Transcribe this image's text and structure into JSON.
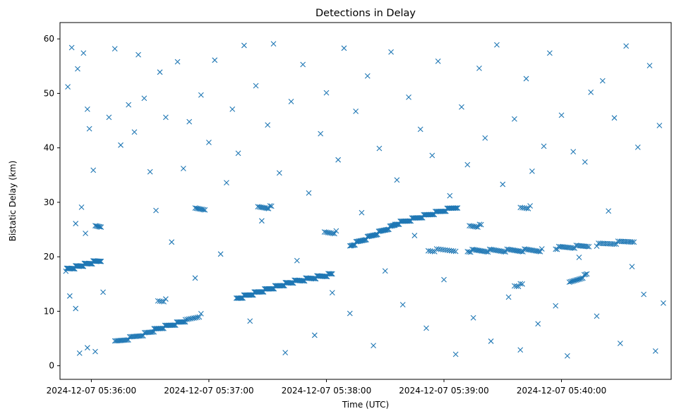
{
  "chart_data": {
    "type": "scatter",
    "title": "Detections in Delay",
    "xlabel": "Time (UTC)",
    "ylabel": "Bistatic Delay (km)",
    "x_axis_type": "datetime",
    "xlim": [
      "2024-12-07 05:35:44",
      "2024-12-07 05:40:56"
    ],
    "ylim": [
      -2.5,
      63
    ],
    "xticks": [
      "2024-12-07 05:36:00",
      "2024-12-07 05:37:00",
      "2024-12-07 05:38:00",
      "2024-12-07 05:39:00",
      "2024-12-07 05:40:00"
    ],
    "yticks": [
      0,
      10,
      20,
      30,
      40,
      50,
      60
    ],
    "marker": "x",
    "color": "#1f77b4",
    "grid": false,
    "legend": "none",
    "track_segments": [
      {
        "start": [
          "2024-12-07 05:35:47",
          17.6
        ],
        "end": [
          "2024-12-07 05:36:05",
          19.4
        ],
        "points": 45
      },
      {
        "start": [
          "2024-12-07 05:36:12",
          4.3
        ],
        "end": [
          "2024-12-07 05:36:32",
          6.3
        ],
        "points": 30
      },
      {
        "start": [
          "2024-12-07 05:36:32",
          6.6
        ],
        "end": [
          "2024-12-07 05:36:48",
          8.2
        ],
        "points": 30
      },
      {
        "start": [
          "2024-12-07 05:36:48",
          8.3
        ],
        "end": [
          "2024-12-07 05:36:56",
          9.3
        ],
        "points": 10
      },
      {
        "start": [
          "2024-12-07 05:37:14",
          12.3
        ],
        "end": [
          "2024-12-07 05:37:40",
          15.1
        ],
        "points": 55
      },
      {
        "start": [
          "2024-12-07 05:37:40",
          15.2
        ],
        "end": [
          "2024-12-07 05:38:03",
          16.8
        ],
        "points": 45
      },
      {
        "start": [
          "2024-12-07 05:38:12",
          22.0
        ],
        "end": [
          "2024-12-07 05:38:35",
          25.8
        ],
        "points": 45
      },
      {
        "start": [
          "2024-12-07 05:38:35",
          26.0
        ],
        "end": [
          "2024-12-07 05:39:07",
          29.2
        ],
        "points": 60
      },
      {
        "start": [
          "2024-12-07 05:38:52",
          21.2
        ],
        "end": [
          "2024-12-07 05:39:06",
          21.2
        ],
        "points": 14
      },
      {
        "start": [
          "2024-12-07 05:39:12",
          21.1
        ],
        "end": [
          "2024-12-07 05:39:50",
          21.2
        ],
        "points": 48
      },
      {
        "start": [
          "2024-12-07 05:39:57",
          21.6
        ],
        "end": [
          "2024-12-07 05:40:14",
          22.0
        ],
        "points": 22
      },
      {
        "start": [
          "2024-12-07 05:40:18",
          22.2
        ],
        "end": [
          "2024-12-07 05:40:37",
          22.9
        ],
        "points": 22
      },
      {
        "start": [
          "2024-12-07 05:40:04",
          15.1
        ],
        "end": [
          "2024-12-07 05:40:13",
          16.7
        ],
        "points": 14
      },
      {
        "start": [
          "2024-12-07 05:36:02",
          25.5
        ],
        "end": [
          "2024-12-07 05:36:05",
          25.5
        ],
        "points": 6
      },
      {
        "start": [
          "2024-12-07 05:36:53",
          28.8
        ],
        "end": [
          "2024-12-07 05:36:58",
          28.8
        ],
        "points": 8
      },
      {
        "start": [
          "2024-12-07 05:37:25",
          29.1
        ],
        "end": [
          "2024-12-07 05:37:32",
          29.1
        ],
        "points": 10
      },
      {
        "start": [
          "2024-12-07 05:37:59",
          24.5
        ],
        "end": [
          "2024-12-07 05:38:05",
          24.5
        ],
        "points": 8
      },
      {
        "start": [
          "2024-12-07 05:39:13",
          25.7
        ],
        "end": [
          "2024-12-07 05:39:19",
          25.7
        ],
        "points": 8
      },
      {
        "start": [
          "2024-12-07 05:39:39",
          29.1
        ],
        "end": [
          "2024-12-07 05:39:44",
          29.1
        ],
        "points": 6
      },
      {
        "start": [
          "2024-12-07 05:36:34",
          12.0
        ],
        "end": [
          "2024-12-07 05:36:38",
          12.0
        ],
        "points": 5
      },
      {
        "start": [
          "2024-12-07 05:39:36",
          14.8
        ],
        "end": [
          "2024-12-07 05:39:40",
          14.8
        ],
        "points": 5
      }
    ],
    "noise_points": [
      [
        "2024-12-07 05:35:48",
        51.2
      ],
      [
        "2024-12-07 05:35:50",
        58.4
      ],
      [
        "2024-12-07 05:35:53",
        54.5
      ],
      [
        "2024-12-07 05:35:56",
        57.4
      ],
      [
        "2024-12-07 05:35:58",
        47.1
      ],
      [
        "2024-12-07 05:35:59",
        43.5
      ],
      [
        "2024-12-07 05:36:01",
        35.9
      ],
      [
        "2024-12-07 05:35:52",
        26.1
      ],
      [
        "2024-12-07 05:35:55",
        29.1
      ],
      [
        "2024-12-07 05:35:57",
        24.3
      ],
      [
        "2024-12-07 05:35:49",
        12.8
      ],
      [
        "2024-12-07 05:35:52",
        10.5
      ],
      [
        "2024-12-07 05:35:54",
        2.3
      ],
      [
        "2024-12-07 05:35:58",
        3.3
      ],
      [
        "2024-12-07 05:36:02",
        2.6
      ],
      [
        "2024-12-07 05:36:06",
        13.5
      ],
      [
        "2024-12-07 05:36:09",
        45.6
      ],
      [
        "2024-12-07 05:36:12",
        58.2
      ],
      [
        "2024-12-07 05:36:15",
        40.5
      ],
      [
        "2024-12-07 05:36:19",
        47.9
      ],
      [
        "2024-12-07 05:36:22",
        42.9
      ],
      [
        "2024-12-07 05:36:24",
        57.1
      ],
      [
        "2024-12-07 05:36:27",
        49.1
      ],
      [
        "2024-12-07 05:36:30",
        35.6
      ],
      [
        "2024-12-07 05:36:33",
        28.5
      ],
      [
        "2024-12-07 05:36:35",
        53.9
      ],
      [
        "2024-12-07 05:36:38",
        45.6
      ],
      [
        "2024-12-07 05:36:41",
        22.7
      ],
      [
        "2024-12-07 05:36:44",
        55.8
      ],
      [
        "2024-12-07 05:36:47",
        36.2
      ],
      [
        "2024-12-07 05:36:50",
        44.8
      ],
      [
        "2024-12-07 05:36:53",
        16.1
      ],
      [
        "2024-12-07 05:36:56",
        49.7
      ],
      [
        "2024-12-07 05:37:00",
        41.0
      ],
      [
        "2024-12-07 05:37:03",
        56.1
      ],
      [
        "2024-12-07 05:37:06",
        20.5
      ],
      [
        "2024-12-07 05:37:09",
        33.6
      ],
      [
        "2024-12-07 05:37:12",
        47.1
      ],
      [
        "2024-12-07 05:37:15",
        39.0
      ],
      [
        "2024-12-07 05:37:18",
        58.8
      ],
      [
        "2024-12-07 05:37:21",
        8.2
      ],
      [
        "2024-12-07 05:37:24",
        51.4
      ],
      [
        "2024-12-07 05:37:27",
        26.6
      ],
      [
        "2024-12-07 05:37:30",
        44.2
      ],
      [
        "2024-12-07 05:37:33",
        59.1
      ],
      [
        "2024-12-07 05:37:36",
        35.4
      ],
      [
        "2024-12-07 05:37:39",
        2.4
      ],
      [
        "2024-12-07 05:37:42",
        48.5
      ],
      [
        "2024-12-07 05:37:45",
        19.3
      ],
      [
        "2024-12-07 05:37:48",
        55.3
      ],
      [
        "2024-12-07 05:37:51",
        31.7
      ],
      [
        "2024-12-07 05:37:54",
        5.6
      ],
      [
        "2024-12-07 05:37:57",
        42.6
      ],
      [
        "2024-12-07 05:38:00",
        50.1
      ],
      [
        "2024-12-07 05:38:03",
        13.4
      ],
      [
        "2024-12-07 05:38:06",
        37.8
      ],
      [
        "2024-12-07 05:38:09",
        58.3
      ],
      [
        "2024-12-07 05:38:12",
        9.6
      ],
      [
        "2024-12-07 05:38:15",
        46.7
      ],
      [
        "2024-12-07 05:38:18",
        28.1
      ],
      [
        "2024-12-07 05:38:21",
        53.2
      ],
      [
        "2024-12-07 05:38:24",
        3.7
      ],
      [
        "2024-12-07 05:38:27",
        39.9
      ],
      [
        "2024-12-07 05:38:30",
        17.4
      ],
      [
        "2024-12-07 05:38:33",
        57.6
      ],
      [
        "2024-12-07 05:38:36",
        34.1
      ],
      [
        "2024-12-07 05:38:39",
        11.2
      ],
      [
        "2024-12-07 05:38:42",
        49.3
      ],
      [
        "2024-12-07 05:38:45",
        23.9
      ],
      [
        "2024-12-07 05:38:48",
        43.4
      ],
      [
        "2024-12-07 05:38:51",
        6.9
      ],
      [
        "2024-12-07 05:38:54",
        38.6
      ],
      [
        "2024-12-07 05:38:57",
        55.9
      ],
      [
        "2024-12-07 05:39:00",
        15.8
      ],
      [
        "2024-12-07 05:39:03",
        31.2
      ],
      [
        "2024-12-07 05:39:06",
        2.1
      ],
      [
        "2024-12-07 05:39:09",
        47.5
      ],
      [
        "2024-12-07 05:39:12",
        36.9
      ],
      [
        "2024-12-07 05:39:15",
        8.8
      ],
      [
        "2024-12-07 05:39:18",
        54.6
      ],
      [
        "2024-12-07 05:39:21",
        41.8
      ],
      [
        "2024-12-07 05:39:24",
        4.5
      ],
      [
        "2024-12-07 05:39:27",
        58.9
      ],
      [
        "2024-12-07 05:39:30",
        33.3
      ],
      [
        "2024-12-07 05:39:33",
        12.6
      ],
      [
        "2024-12-07 05:39:36",
        45.3
      ],
      [
        "2024-12-07 05:39:39",
        2.9
      ],
      [
        "2024-12-07 05:39:42",
        52.7
      ],
      [
        "2024-12-07 05:39:45",
        35.7
      ],
      [
        "2024-12-07 05:39:48",
        7.7
      ],
      [
        "2024-12-07 05:39:51",
        40.3
      ],
      [
        "2024-12-07 05:39:54",
        57.4
      ],
      [
        "2024-12-07 05:39:57",
        11.0
      ],
      [
        "2024-12-07 05:40:00",
        46.0
      ],
      [
        "2024-12-07 05:40:03",
        1.8
      ],
      [
        "2024-12-07 05:40:06",
        39.3
      ],
      [
        "2024-12-07 05:40:09",
        19.9
      ],
      [
        "2024-12-07 05:40:12",
        37.4
      ],
      [
        "2024-12-07 05:40:15",
        50.2
      ],
      [
        "2024-12-07 05:40:18",
        9.1
      ],
      [
        "2024-12-07 05:40:21",
        52.3
      ],
      [
        "2024-12-07 05:40:24",
        28.4
      ],
      [
        "2024-12-07 05:40:27",
        45.5
      ],
      [
        "2024-12-07 05:40:30",
        4.1
      ],
      [
        "2024-12-07 05:40:33",
        58.7
      ],
      [
        "2024-12-07 05:40:36",
        18.2
      ],
      [
        "2024-12-07 05:40:39",
        40.1
      ],
      [
        "2024-12-07 05:40:42",
        13.1
      ],
      [
        "2024-12-07 05:40:45",
        55.1
      ],
      [
        "2024-12-07 05:40:48",
        2.7
      ],
      [
        "2024-12-07 05:40:50",
        44.1
      ],
      [
        "2024-12-07 05:40:52",
        11.5
      ]
    ]
  }
}
